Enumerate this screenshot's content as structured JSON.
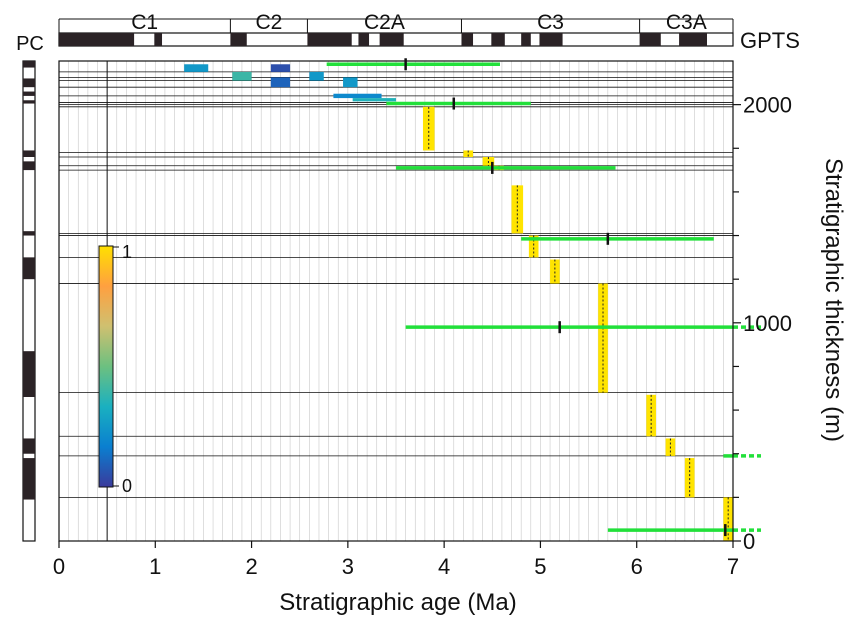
{
  "chart_data": {
    "type": "scatter",
    "xlabel": "Stratigraphic age (Ma)",
    "ylabel": "Stratigraphic thickness (m)",
    "xlim": [
      0,
      7
    ],
    "ylim": [
      0,
      2200
    ],
    "x_ticks": [
      0,
      1,
      2,
      3,
      4,
      5,
      6,
      7
    ],
    "y_labeled_ticks": [
      0,
      1000,
      2000
    ],
    "y_minor_ticks": [
      200,
      400,
      600,
      800,
      1200,
      1400,
      1600,
      1800
    ],
    "gpts_label": "GPTS",
    "pc_label": "PC",
    "chrons": [
      {
        "label": "C1",
        "start": 0.0,
        "end": 1.78
      },
      {
        "label": "C2",
        "start": 1.78,
        "end": 2.58
      },
      {
        "label": "C2A",
        "start": 2.58,
        "end": 4.18
      },
      {
        "label": "C3",
        "start": 4.18,
        "end": 6.03
      },
      {
        "label": "C3A",
        "start": 6.03,
        "end": 7.0
      }
    ],
    "gpts_normal": [
      [
        0.0,
        0.78
      ],
      [
        0.99,
        1.07
      ],
      [
        1.78,
        1.95
      ],
      [
        2.58,
        3.04
      ],
      [
        3.11,
        3.22
      ],
      [
        3.33,
        3.58
      ],
      [
        4.18,
        4.3
      ],
      [
        4.49,
        4.63
      ],
      [
        4.8,
        4.9
      ],
      [
        4.99,
        5.23
      ],
      [
        6.03,
        6.25
      ],
      [
        6.44,
        6.73
      ]
    ],
    "pc_normal": [
      [
        2170,
        2200
      ],
      [
        2080,
        2120
      ],
      [
        2040,
        2060
      ],
      [
        2005,
        2020
      ],
      [
        1760,
        1790
      ],
      [
        1700,
        1740
      ],
      [
        1400,
        1420
      ],
      [
        1200,
        1300
      ],
      [
        660,
        870
      ],
      [
        400,
        470
      ],
      [
        190,
        380
      ]
    ],
    "colorbar": {
      "min_label": "0",
      "max_label": "1",
      "colors": [
        "#3a3a9c",
        "#0a7fd0",
        "#1ab0c0",
        "#6cc080",
        "#cfc070",
        "#ffa040",
        "#ffe000"
      ]
    },
    "tie_lines_m": [
      2200,
      2150,
      2125,
      2110,
      2080,
      2040,
      2010,
      2000,
      1990,
      1780,
      1760,
      1720,
      1700,
      1410,
      1400,
      1300,
      1180,
      680,
      480,
      390,
      200
    ],
    "heat_cells": [
      {
        "t0": 1.3,
        "t1": 1.55,
        "h0": 2150,
        "h1": 2185,
        "v": 0.25
      },
      {
        "t0": 1.8,
        "t1": 2.0,
        "h0": 2110,
        "h1": 2150,
        "v": 0.4
      },
      {
        "t0": 2.2,
        "t1": 2.4,
        "h0": 2150,
        "h1": 2185,
        "v": 0.05
      },
      {
        "t0": 2.2,
        "t1": 2.4,
        "h0": 2080,
        "h1": 2125,
        "v": 0.1
      },
      {
        "t0": 2.6,
        "t1": 2.75,
        "h0": 2110,
        "h1": 2150,
        "v": 0.25
      },
      {
        "t0": 2.95,
        "t1": 3.1,
        "h0": 2080,
        "h1": 2125,
        "v": 0.25
      },
      {
        "t0": 2.85,
        "t1": 3.35,
        "h0": 2030,
        "h1": 2050,
        "v": 0.2
      },
      {
        "t0": 3.05,
        "t1": 3.5,
        "h0": 2015,
        "h1": 2030,
        "v": 0.35
      }
    ],
    "yellow_cells": [
      {
        "t0": 3.4,
        "t1": 3.5,
        "h0": 2000,
        "h1": 2010
      },
      {
        "t0": 3.78,
        "t1": 3.9,
        "h0": 1790,
        "h1": 1990
      },
      {
        "t0": 4.2,
        "t1": 4.3,
        "h0": 1760,
        "h1": 1790
      },
      {
        "t0": 4.4,
        "t1": 4.52,
        "h0": 1720,
        "h1": 1760
      },
      {
        "t0": 4.52,
        "t1": 4.62,
        "h0": 1700,
        "h1": 1720
      },
      {
        "t0": 4.7,
        "t1": 4.82,
        "h0": 1410,
        "h1": 1630
      },
      {
        "t0": 4.88,
        "t1": 4.98,
        "h0": 1300,
        "h1": 1400
      },
      {
        "t0": 5.1,
        "t1": 5.2,
        "h0": 1180,
        "h1": 1290
      },
      {
        "t0": 5.6,
        "t1": 5.7,
        "h0": 680,
        "h1": 1180
      },
      {
        "t0": 6.1,
        "t1": 6.2,
        "h0": 480,
        "h1": 670
      },
      {
        "t0": 6.3,
        "t1": 6.4,
        "h0": 390,
        "h1": 470
      },
      {
        "t0": 6.5,
        "t1": 6.6,
        "h0": 200,
        "h1": 380
      },
      {
        "t0": 6.9,
        "t1": 7.0,
        "h0": 0,
        "h1": 200
      }
    ],
    "green_ranges": [
      {
        "t0": 2.78,
        "t1": 4.58,
        "h": 2185,
        "tick": 3.6,
        "extends": false
      },
      {
        "t0": 3.4,
        "t1": 4.9,
        "h": 2005,
        "tick": 4.1,
        "extends": false
      },
      {
        "t0": 3.5,
        "t1": 5.78,
        "h": 1710,
        "tick": 4.5,
        "extends": false
      },
      {
        "t0": 4.8,
        "t1": 6.8,
        "h": 1385,
        "tick": 5.7,
        "extends": false
      },
      {
        "t0": 3.6,
        "t1": 7.0,
        "h": 980,
        "tick": 5.2,
        "extends": true
      },
      {
        "t0": 6.9,
        "t1": 7.0,
        "h": 390,
        "tick": null,
        "extends": true
      },
      {
        "t0": 5.7,
        "t1": 7.0,
        "h": 50,
        "tick": 6.92,
        "extends": true
      }
    ],
    "grid": true,
    "legend": "none"
  }
}
